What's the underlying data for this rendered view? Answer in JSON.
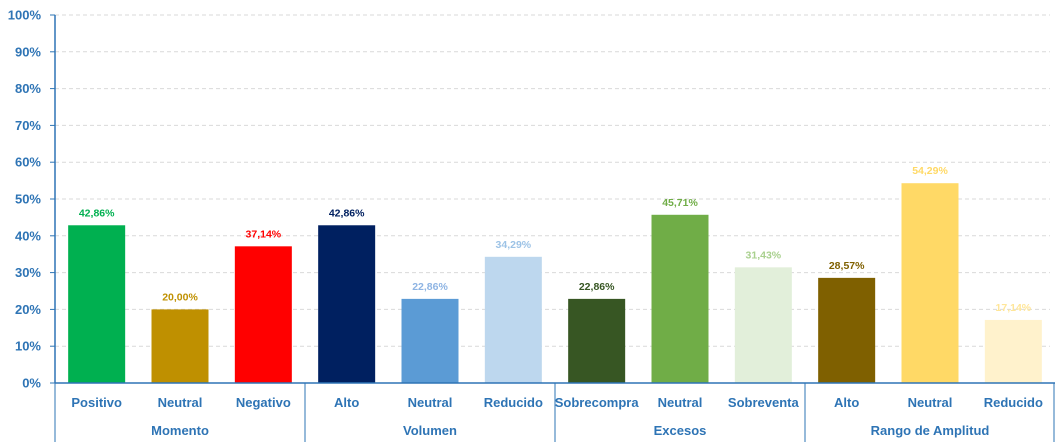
{
  "chart_data": {
    "type": "bar",
    "title": "",
    "xlabel": "",
    "ylabel": "",
    "ylim": [
      0,
      100
    ],
    "ytick_labels": [
      "0%",
      "10%",
      "20%",
      "30%",
      "40%",
      "50%",
      "60%",
      "70%",
      "80%",
      "90%",
      "100%"
    ],
    "grid": true,
    "groups": [
      {
        "name": "Momento",
        "bars": [
          {
            "category": "Positivo",
            "value": 42.86,
            "label": "42,86%",
            "color": "#00b050",
            "label_color": "#00b050"
          },
          {
            "category": "Neutral",
            "value": 20.0,
            "label": "20,00%",
            "color": "#bf9000",
            "label_color": "#bf9000"
          },
          {
            "category": "Negativo",
            "value": 37.14,
            "label": "37,14%",
            "color": "#ff0000",
            "label_color": "#ff0000"
          }
        ]
      },
      {
        "name": "Volumen",
        "bars": [
          {
            "category": "Alto",
            "value": 42.86,
            "label": "42,86%",
            "color": "#002060",
            "label_color": "#002060"
          },
          {
            "category": "Neutral",
            "value": 22.86,
            "label": "22,86%",
            "color": "#5b9bd5",
            "label_color": "#8eb4e3"
          },
          {
            "category": "Reducido",
            "value": 34.29,
            "label": "34,29%",
            "color": "#bdd7ee",
            "label_color": "#9dc3e6"
          }
        ]
      },
      {
        "name": "Excesos",
        "bars": [
          {
            "category": "Sobrecompra",
            "value": 22.86,
            "label": "22,86%",
            "color": "#375623",
            "label_color": "#375623"
          },
          {
            "category": "Neutral",
            "value": 45.71,
            "label": "45,71%",
            "color": "#70ad47",
            "label_color": "#70ad47"
          },
          {
            "category": "Sobreventa",
            "value": 31.43,
            "label": "31,43%",
            "color": "#e2efda",
            "label_color": "#a9d08e"
          }
        ]
      },
      {
        "name": "Rango de Amplitud",
        "bars": [
          {
            "category": "Alto",
            "value": 28.57,
            "label": "28,57%",
            "color": "#7f6000",
            "label_color": "#7f6000"
          },
          {
            "category": "Neutral",
            "value": 54.29,
            "label": "54,29%",
            "color": "#ffd966",
            "label_color": "#ffd966"
          },
          {
            "category": "Reducido",
            "value": 17.14,
            "label": "17,14%",
            "color": "#fff2cc",
            "label_color": "#ffe699"
          }
        ]
      }
    ]
  },
  "colors": {
    "axis": "#2e74b5",
    "tick_text": "#2e74b5",
    "gridline": "#d9d9d9"
  }
}
